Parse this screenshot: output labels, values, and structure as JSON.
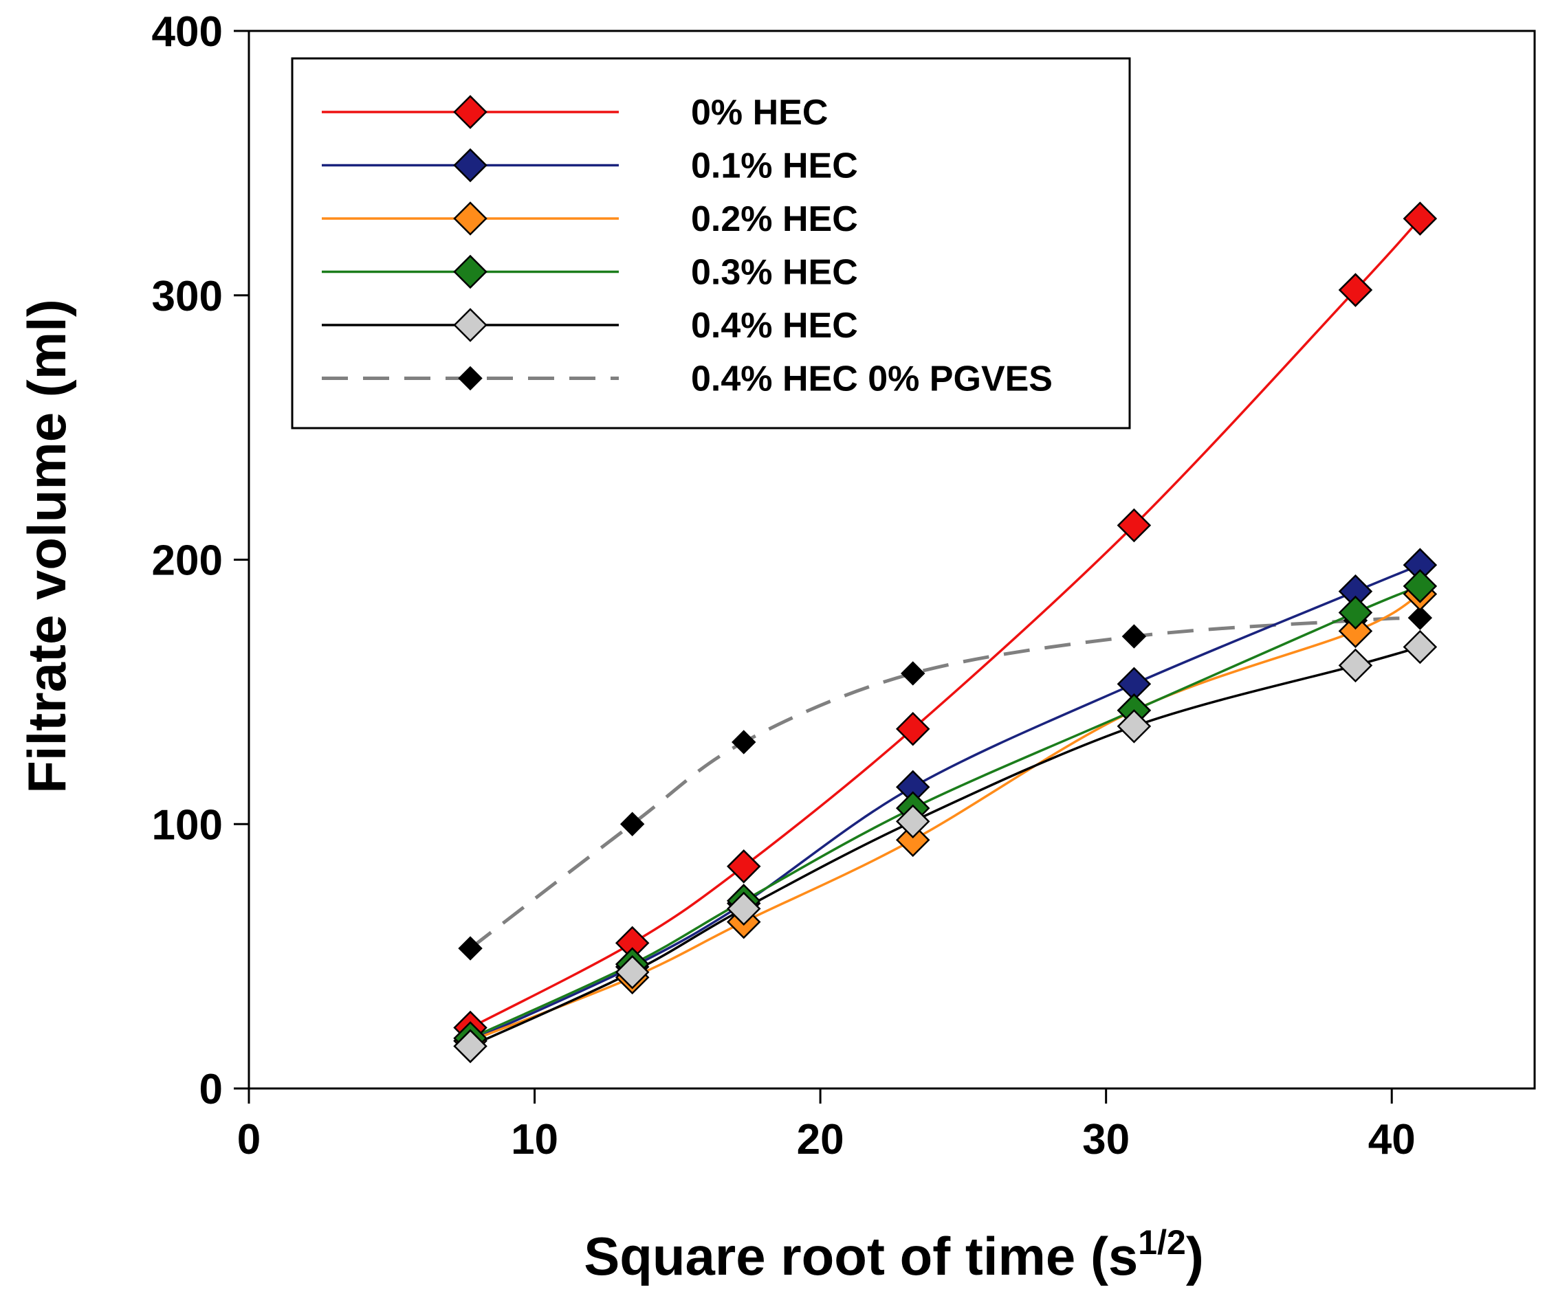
{
  "chart_data": {
    "type": "line",
    "title": "",
    "xlabel": "Square root of time (s",
    "xlabel_superscript": "1/2",
    "xlabel_close": ")",
    "ylabel": "Filtrate volume (ml)",
    "xlim": [
      0,
      45
    ],
    "ylim": [
      0,
      400
    ],
    "xticks": [
      0,
      10,
      20,
      30,
      40
    ],
    "yticks": [
      0,
      100,
      200,
      300,
      400
    ],
    "legend_position": "top-left",
    "x": [
      7.75,
      13.42,
      17.32,
      23.24,
      30.98,
      38.73,
      40.99
    ],
    "series": [
      {
        "name": "0% HEC",
        "color": "#ee1111",
        "marker_fill": "#ee1111",
        "dash": false,
        "values": [
          23,
          55,
          84,
          136,
          213,
          302,
          329
        ]
      },
      {
        "name": "0.1% HEC",
        "color": "#1a237e",
        "marker_fill": "#1a237e",
        "dash": false,
        "values": [
          18,
          46,
          70,
          114,
          153,
          188,
          198
        ]
      },
      {
        "name": "0.2% HEC",
        "color": "#ff8c1a",
        "marker_fill": "#ff8c1a",
        "dash": false,
        "values": [
          18,
          42,
          63,
          94,
          143,
          173,
          187
        ]
      },
      {
        "name": "0.3% HEC",
        "color": "#1b7d1b",
        "marker_fill": "#1b7d1b",
        "dash": false,
        "values": [
          19,
          47,
          71,
          106,
          143,
          180,
          190
        ]
      },
      {
        "name": "0.4% HEC",
        "color": "#000000",
        "marker_fill": "#cccccc",
        "dash": false,
        "values": [
          16,
          44,
          68,
          101,
          137,
          160,
          167
        ]
      },
      {
        "name": "0.4% HEC 0% PGVES",
        "color": "#808080",
        "marker_fill": "#000000",
        "dash": true,
        "values": [
          53,
          100,
          131,
          157,
          171,
          177,
          178
        ]
      }
    ]
  }
}
